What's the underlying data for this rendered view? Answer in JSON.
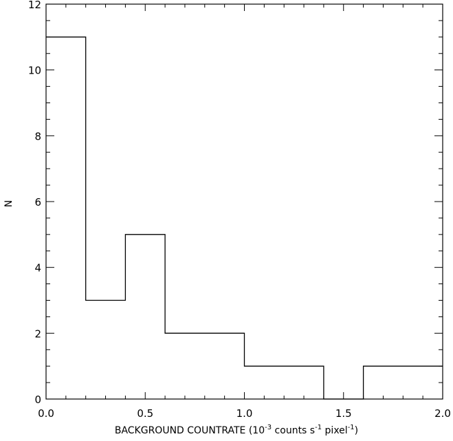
{
  "chart_data": {
    "type": "histogram",
    "xlabel": "BACKGROUND COUNTRATE (10",
    "xlabel_parts": {
      "a": "BACKGROUND COUNTRATE (10",
      "a_sup": "-3",
      "b": " counts s",
      "b_sup": "-1",
      "c": " pixel",
      "c_sup": "-1",
      "d": ")"
    },
    "ylabel": "N",
    "xlim": [
      0.0,
      2.0
    ],
    "ylim": [
      0,
      12
    ],
    "x_ticks": [
      "0.0",
      "0.5",
      "1.0",
      "1.5",
      "2.0"
    ],
    "y_ticks": [
      "0",
      "2",
      "4",
      "6",
      "8",
      "10",
      "12"
    ],
    "bins": [
      {
        "x0": 0.0,
        "x1": 0.2,
        "count": 11
      },
      {
        "x0": 0.2,
        "x1": 0.4,
        "count": 3
      },
      {
        "x0": 0.4,
        "x1": 0.6,
        "count": 5
      },
      {
        "x0": 0.6,
        "x1": 0.8,
        "count": 2
      },
      {
        "x0": 0.8,
        "x1": 1.0,
        "count": 2
      },
      {
        "x0": 1.0,
        "x1": 1.2,
        "count": 1
      },
      {
        "x0": 1.2,
        "x1": 1.4,
        "count": 1
      },
      {
        "x0": 1.4,
        "x1": 1.6,
        "count": 0
      },
      {
        "x0": 1.6,
        "x1": 1.8,
        "count": 1
      },
      {
        "x0": 1.8,
        "x1": 2.0,
        "count": 1
      }
    ],
    "grid": false,
    "line_color": "#000000"
  }
}
